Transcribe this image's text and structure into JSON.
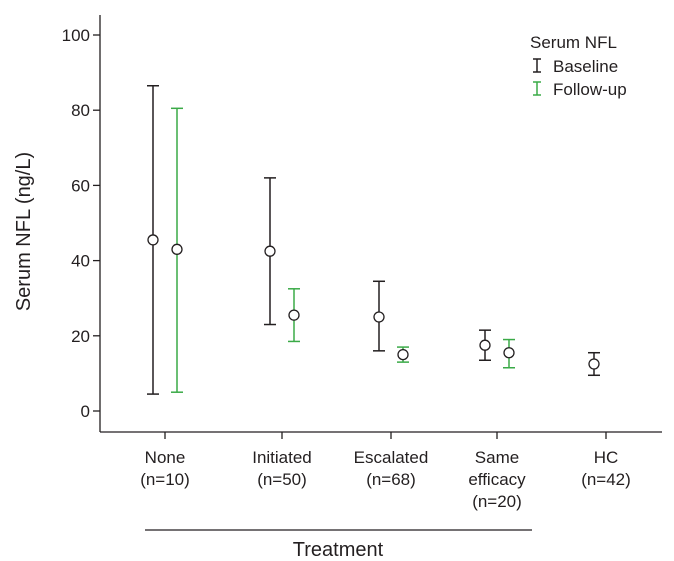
{
  "chart_data": {
    "type": "errorbar",
    "ylabel": "Serum NFL (ng/L)",
    "xlabel": "Treatment",
    "ylim": [
      -5,
      105
    ],
    "yticks": [
      0,
      20,
      40,
      60,
      80,
      100
    ],
    "grid": false,
    "legend": {
      "title": "Serum NFL",
      "position": "top-right",
      "entries": [
        {
          "name": "Baseline",
          "color": "#231f20"
        },
        {
          "name": "Follow-up",
          "color": "#3aaa47"
        }
      ]
    },
    "groups": [
      {
        "line1": "None",
        "line2": "(n=10)",
        "line3": ""
      },
      {
        "line1": "Initiated",
        "line2": "(n=50)",
        "line3": ""
      },
      {
        "line1": "Escalated",
        "line2": "(n=68)",
        "line3": ""
      },
      {
        "line1": "Same",
        "line2": "efficacy",
        "line3": "(n=20)"
      },
      {
        "line1": "HC",
        "line2": "(n=42)",
        "line3": ""
      }
    ],
    "series": [
      {
        "name": "Baseline",
        "color": "#231f20",
        "points": [
          {
            "group": 0,
            "mean": 45.5,
            "low": 4.5,
            "high": 86.5
          },
          {
            "group": 1,
            "mean": 42.5,
            "low": 23.0,
            "high": 62.0
          },
          {
            "group": 2,
            "mean": 25.0,
            "low": 16.0,
            "high": 34.5
          },
          {
            "group": 3,
            "mean": 17.5,
            "low": 13.5,
            "high": 21.5
          },
          {
            "group": 4,
            "mean": 12.5,
            "low": 9.5,
            "high": 15.5
          }
        ]
      },
      {
        "name": "Follow-up",
        "color": "#3aaa47",
        "points": [
          {
            "group": 0,
            "mean": 43.0,
            "low": 5.0,
            "high": 80.5
          },
          {
            "group": 1,
            "mean": 25.5,
            "low": 18.5,
            "high": 32.5
          },
          {
            "group": 2,
            "mean": 15.0,
            "low": 13.0,
            "high": 17.0
          },
          {
            "group": 3,
            "mean": 15.5,
            "low": 11.5,
            "high": 19.0
          }
        ]
      }
    ]
  }
}
